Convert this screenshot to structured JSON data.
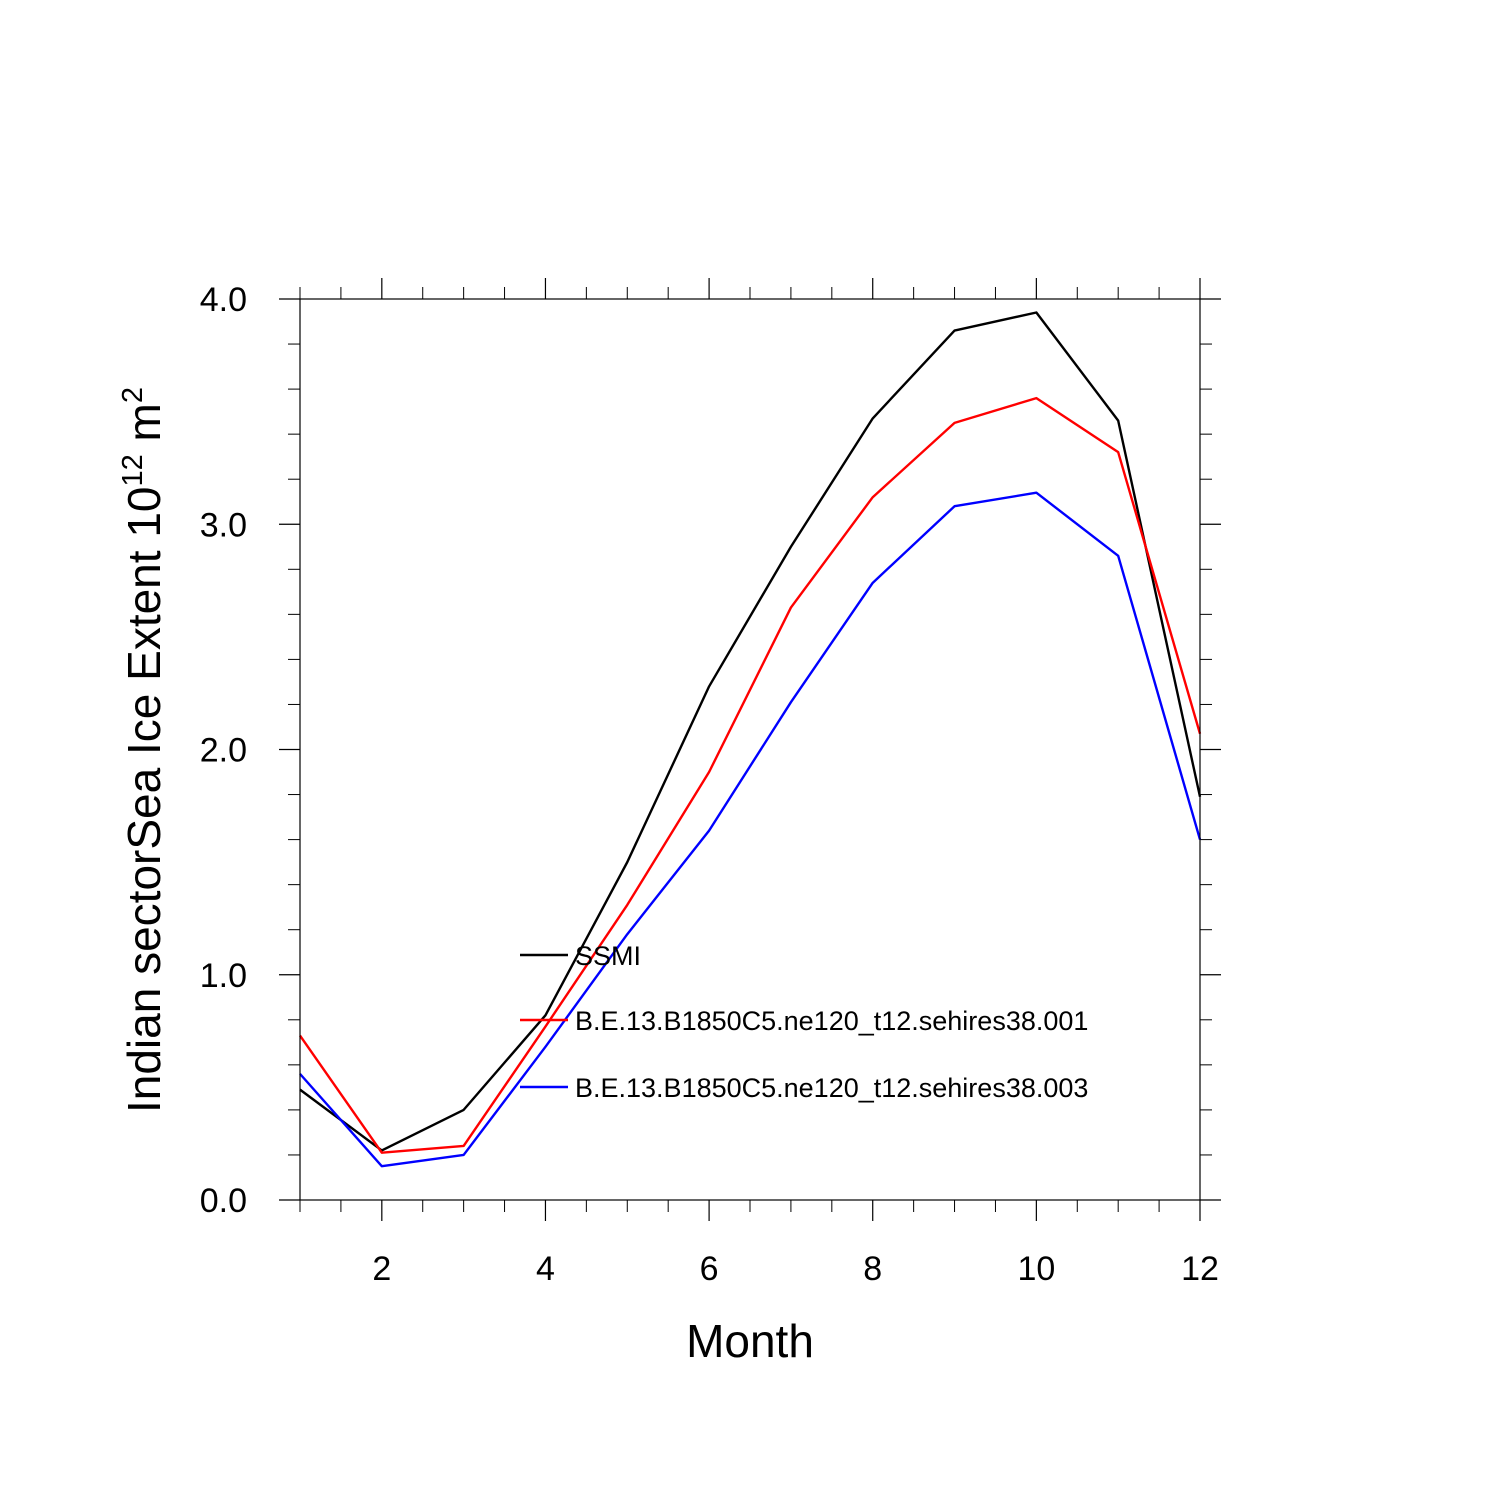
{
  "chart_data": {
    "type": "line",
    "xlabel": "Month",
    "ylabel": "Indian sectorSea Ice Extent 10",
    "ylabel_exponent": "12",
    "ylabel_unit": " m",
    "ylabel_unit_exponent": "2",
    "xlim": [
      1,
      12
    ],
    "ylim": [
      0,
      4
    ],
    "x_ticks": [
      2,
      4,
      6,
      8,
      10,
      12
    ],
    "x_tick_labels": [
      "2",
      "4",
      "6",
      "8",
      "10",
      "12"
    ],
    "y_ticks": [
      0,
      1,
      2,
      3,
      4
    ],
    "y_tick_labels": [
      "0.0",
      "1.0",
      "2.0",
      "3.0",
      "4.0"
    ],
    "legend_position": "center",
    "grid": false,
    "x": [
      1,
      2,
      3,
      4,
      5,
      6,
      7,
      8,
      9,
      10,
      11,
      12
    ],
    "series": [
      {
        "name": "SSMI",
        "color": "#000000",
        "values": [
          0.49,
          0.22,
          0.4,
          0.82,
          1.5,
          2.28,
          2.9,
          3.47,
          3.86,
          3.94,
          3.46,
          1.79
        ]
      },
      {
        "name": "B.E.13.B1850C5.ne120_t12.sehires38.001",
        "color": "#ff0000",
        "values": [
          0.73,
          0.21,
          0.24,
          0.77,
          1.31,
          1.9,
          2.63,
          3.12,
          3.45,
          3.56,
          3.32,
          2.07
        ]
      },
      {
        "name": "B.E.13.B1850C5.ne120_t12.sehires38.003",
        "color": "#0000ff",
        "values": [
          0.56,
          0.15,
          0.2,
          0.68,
          1.18,
          1.64,
          2.21,
          2.74,
          3.08,
          3.14,
          2.86,
          1.6
        ]
      }
    ]
  }
}
